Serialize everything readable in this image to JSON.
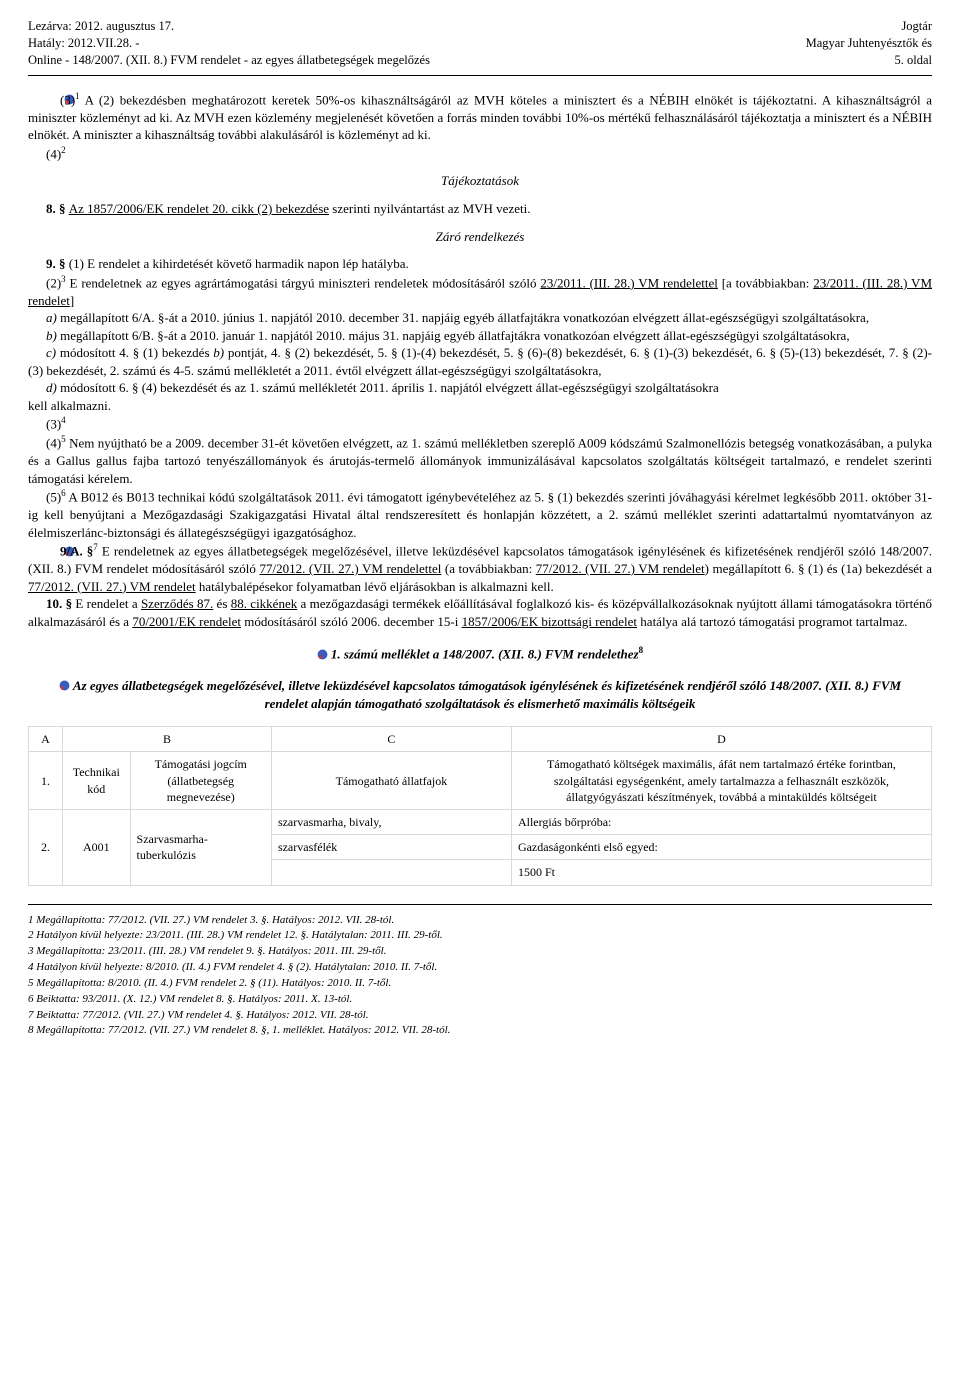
{
  "header": {
    "left_line1": "Lezárva: 2012. augusztus 17.",
    "left_line2": "Hatály: 2012.VII.28. -",
    "left_line3": "Online - 148/2007. (XII. 8.) FVM rendelet - az egyes állatbetegségek megelőzés",
    "right_line1": "Jogtár",
    "right_line2": "Magyar Juhtenyésztők és",
    "right_line3": "5. oldal"
  },
  "para31": "(3)",
  "para31_super": "1",
  "para31_body": " A (2) bekezdésben meghatározott keretek 50%-os kihasználtságáról az MVH köteles a minisztert és a NÉBIH elnökét is tájékoztatni. A kihasználtságról a miniszter közleményt ad ki. Az MVH ezen közlemény megjelenését követően a forrás minden további 10%-os mértékű felhasználásáról tájékoztatja a minisztert és a NÉBIH elnökét. A miniszter a kihasználtság további alakulásáról is közleményt ad ki.",
  "para42": "(4)",
  "para42_super": "2",
  "tajekoztatasok": "Tájékoztatások",
  "item8_pre": "8. § ",
  "item8_link": "Az 1857/2006/EK rendelet 20. cikk (2) bekezdése",
  "item8_post": " szerinti nyilvántartást az MVH vezeti.",
  "zaro": "Záró rendelkezés",
  "item9_1": "9. § (1) E rendelet a kihirdetését követő harmadik napon lép hatályba.",
  "item9_2a": "(2)",
  "item9_2super": "3",
  "item9_2b": " E rendeletnek az egyes agrártámogatási tárgyú miniszteri rendeletek módosításáról szóló ",
  "item9_2link1": "23/2011. (III. 28.) VM rendelettel",
  "item9_2c": " [a továbbiakban: ",
  "item9_2link2": "23/2011. (III. 28.) VM rendelet",
  "item9_2d": "]",
  "item_a": "a) megállapított 6/A. §-át a 2010. június 1. napjától 2010. december 31. napjáig egyéb állatfajtákra vonatkozóan elvégzett állat-egészségügyi szolgáltatásokra,",
  "item_b": "b) megállapított 6/B. §-át a 2010. január 1. napjától 2010. május 31. napjáig egyéb állatfajtákra vonatkozóan elvégzett állat-egészségügyi szolgáltatásokra,",
  "item_c": "c) módosított 4. § (1) bekezdés b) pontját, 4. § (2) bekezdését, 5. § (1)-(4) bekezdését, 5. § (6)-(8) bekezdését, 6. § (1)-(3) bekezdését, 6. § (5)-(13) bekezdését, 7. § (2)-(3) bekezdését, 2. számú és 4-5. számú mellékletét a 2011. évtől elvégzett állat-egészségügyi szolgáltatásokra,",
  "item_d": "d) módosított 6. § (4) bekezdését és az 1. számú mellékletét 2011. április 1. napjától elvégzett állat-egészségügyi szolgáltatásokra kell alkalmazni.",
  "item_3": "(3)",
  "item_3super": "4",
  "item_45a": "(4)",
  "item_45super": "5",
  "item_45body": " Nem nyújtható be a 2009. december 31-ét követően elvégzett, az 1. számú mellékletben szereplő A009 kódszámú Szalmonellózis betegség vonatkozásában, a pulyka és a Gallus gallus fajba tartozó tenyészállományok és árutojás-termelő állományok immunizálásával kapcsolatos szolgáltatás költségeit tartalmazó, e rendelet szerinti támogatási kérelem.",
  "item_56a": "(5)",
  "item_56super": "6",
  "item_56body": " A B012 és B013 technikai kódú szolgáltatások 2011. évi támogatott igénybevételéhez az 5. § (1) bekezdés szerinti jóváhagyási kérelmet legkésőbb 2011. október 31-ig kell benyújtani a Mezőgazdasági Szakigazgatási Hivatal által rendszeresített és honlapján közzétett, a 2. számú melléklet szerinti adattartalmú nyomtatványon az élelmiszerlánc-biztonsági és állategészségügyi igazgatósághoz.",
  "item_9A_a": "9/A. §",
  "item_9A_super": "7",
  "item_9A_b": " E rendeletnek az egyes állatbetegségek megelőzésével, illetve leküzdésével kapcsolatos támogatások igénylésének és kifizetésének rendjéről szóló 148/2007. (XII. 8.) FVM rendelet módosításáról szóló ",
  "item_9A_link1": "77/2012. (VII. 27.) VM rendelettel",
  "item_9A_c": " (a továbbiakban: ",
  "item_9A_link2": "77/2012. (VII. 27.) VM rendelet",
  "item_9A_d": ") megállapított 6. § (1) és (1a) bekezdését a ",
  "item_9A_link3": "77/2012. (VII. 27.) VM rendelet",
  "item_9A_e": " hatálybalépésekor folyamatban lévő eljárásokban is alkalmazni kell.",
  "item_10a": "10. §",
  "item_10b": " E rendelet a ",
  "item_10link1": "Szerződés 87.",
  "item_10c": " és ",
  "item_10link2": "88. cikkének",
  "item_10d": " a mezőgazdasági termékek előállításával foglalkozó kis- és középvállalkozásoknak nyújtott állami támogatásokra történő alkalmazásáról és a ",
  "item_10link3": "70/2001/EK rendelet",
  "item_10e": " módosításáról szóló 2006. december 15-i ",
  "item_10link4": "1857/2006/EK bizottsági rendelet",
  "item_10f": " hatálya alá tartozó támogatási programot tartalmaz.",
  "annex_title": "1. számú melléklet a 148/2007. (XII. 8.) FVM rendelethez",
  "annex_title_super": "8",
  "annex_sub_title": "Az egyes állatbetegségek megelőzésével, illetve leküzdésével kapcsolatos támogatások igénylésének és kifizetésének rendjéről szóló 148/2007. (XII. 8.) FVM rendelet alapján támogatható szolgáltatások és elismerhető maximális költségeik",
  "table": {
    "hA": "A",
    "hB": "B",
    "hC": "C",
    "hD": "D",
    "r1n": "1.",
    "r1b": "Technikai kód",
    "r1c_top": "Támogatási jogcím (állatbetegség megnevezése)",
    "r1c": "Támogatható állatfajok",
    "r1d": "Támogatható költségek maximális, áfát nem tartalmazó értéke forintban, szolgáltatási egységenként, amely tartalmazza a felhasznált eszközök, állatgyógyászati készítmények, továbbá a mintaküldés költségeit",
    "r2n": "2.",
    "r2b": "A001",
    "r2c": "Szarvasmarha-tuberkulózis",
    "r2d_a": "szarvasmarha, bivaly,",
    "r2d_b": "szarvasfélék",
    "r2e_a": "Allergiás bőrpróba:",
    "r2e_b": "Gazdaságonkénti első egyed:",
    "r2e_c": "1500 Ft"
  },
  "footnotes": {
    "f1": "1   Megállapította: 77/2012. (VII. 27.) VM rendelet 3. §. Hatályos: 2012. VII. 28-tól.",
    "f2": "2   Hatályon kívül helyezte: 23/2011. (III. 28.) VM rendelet 12. §. Hatálytalan: 2011. III. 29-től.",
    "f3": "3   Megállapította: 23/2011. (III. 28.) VM rendelet 9. §. Hatályos: 2011. III. 29-től.",
    "f4": "4   Hatályon kívül helyezte: 8/2010. (II. 4.) FVM rendelet 4. § (2). Hatálytalan: 2010. II. 7-től.",
    "f5": "5   Megállapította: 8/2010. (II. 4.) FVM rendelet 2. § (11). Hatályos: 2010. II. 7-től.",
    "f6": "6   Beiktatta: 93/2011. (X. 12.) VM rendelet 8. §. Hatályos: 2011. X. 13-tól.",
    "f7": "7   Beiktatta: 77/2012. (VII. 27.) VM rendelet 4. §. Hatályos: 2012. VII. 28-tól.",
    "f8": "8   Megállapította: 77/2012. (VII. 27.) VM rendelet 8. §, 1. melléklet. Hatályos: 2012. VII. 28-tól."
  }
}
